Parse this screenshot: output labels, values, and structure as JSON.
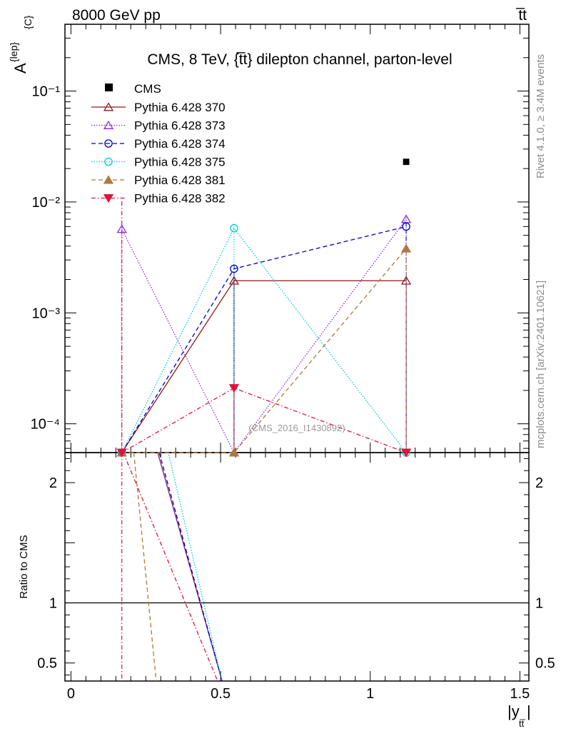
{
  "header": {
    "left": "8000 GeV pp",
    "right": "t̅t"
  },
  "side_labels": {
    "rivet": "Rivet 4.1.0, ≥ 3.4M events",
    "mcplots": "mcplots.cern.ch [arXiv:2401.10621]"
  },
  "chart_data": {
    "type": "line",
    "title": "CMS, 8 TeV, {t̅t} dilepton channel, parton-level",
    "watermark": "(CMS_2016_I1430892)",
    "ylabel": "A",
    "ylabel_sup": "{lep}",
    "ylabel_sub": "{C}",
    "xlabel": "|y",
    "xlabel_sub": "tt̅",
    "xlim": [
      -0.02,
      1.53
    ],
    "ylim": [
      5.5e-05,
      0.4
    ],
    "yscale": "log",
    "x_ticks": [
      0,
      0.5,
      1,
      1.5
    ],
    "x_tick_labels": [
      "0",
      "0.5",
      "1",
      "1.5"
    ],
    "y_ticks": [
      0.0001,
      0.001,
      0.01,
      0.1
    ],
    "y_tick_labels": [
      "10⁻⁴",
      "10⁻³",
      "10⁻²",
      "10⁻¹"
    ],
    "ratio": {
      "ylabel": "Ratio to CMS",
      "ylim": [
        0.35,
        2.25
      ],
      "y_ticks": [
        0.5,
        1,
        2
      ],
      "y_tick_labels": [
        "0.5",
        "1",
        "2"
      ]
    },
    "x": [
      0.17,
      0.545,
      1.12
    ],
    "cms": {
      "name": "CMS",
      "x": 1.12,
      "y": 0.023,
      "color": "#000000"
    },
    "series": [
      {
        "name": "Pythia 6.428 370",
        "color": "#8b1a1a",
        "dash": "",
        "marker": "triangle-open",
        "y": [
          5.5e-05,
          0.00195,
          0.00195
        ],
        "ratio_line": [
          [
            0.29,
            2.25
          ],
          [
            0.505,
            0.35
          ]
        ]
      },
      {
        "name": "Pythia 6.428 373",
        "color": "#8a2be2",
        "dash": "1.5,2",
        "marker": "triangle-open",
        "y": [
          0.0057,
          5.5e-05,
          0.007
        ],
        "ratio_line": [
          [
            0.29,
            2.25
          ],
          [
            0.505,
            0.35
          ]
        ]
      },
      {
        "name": "Pythia 6.428 374",
        "color": "#0000cd",
        "dash": "6,4",
        "marker": "circle-open",
        "y": [
          5.5e-05,
          0.0025,
          0.006
        ],
        "ratio_line": [
          [
            0.295,
            2.25
          ],
          [
            0.505,
            0.35
          ]
        ]
      },
      {
        "name": "Pythia 6.428 375",
        "color": "#00ced1",
        "dash": "1.5,2",
        "marker": "circle-open",
        "y": [
          5.5e-05,
          0.0058,
          5.5e-05
        ],
        "ratio_line": [
          [
            0.325,
            2.25
          ],
          [
            0.505,
            0.35
          ]
        ]
      },
      {
        "name": "Pythia 6.428 381",
        "color": "#b07840",
        "dash": "6,4",
        "marker": "triangle-filled",
        "y": [
          5.5e-05,
          5.5e-05,
          0.0038
        ],
        "ratio_line": [
          [
            0.21,
            2.25
          ],
          [
            0.285,
            0.35
          ]
        ]
      },
      {
        "name": "Pythia 6.428 382",
        "color": "#dc143c",
        "dash": "6,3,1.5,3",
        "marker": "triangle-down-filled",
        "y": [
          5.5e-05,
          0.00021,
          5.5e-05
        ],
        "ratio_line": [
          [
            0.175,
            2.25
          ],
          [
            0.49,
            0.35
          ]
        ]
      }
    ]
  }
}
